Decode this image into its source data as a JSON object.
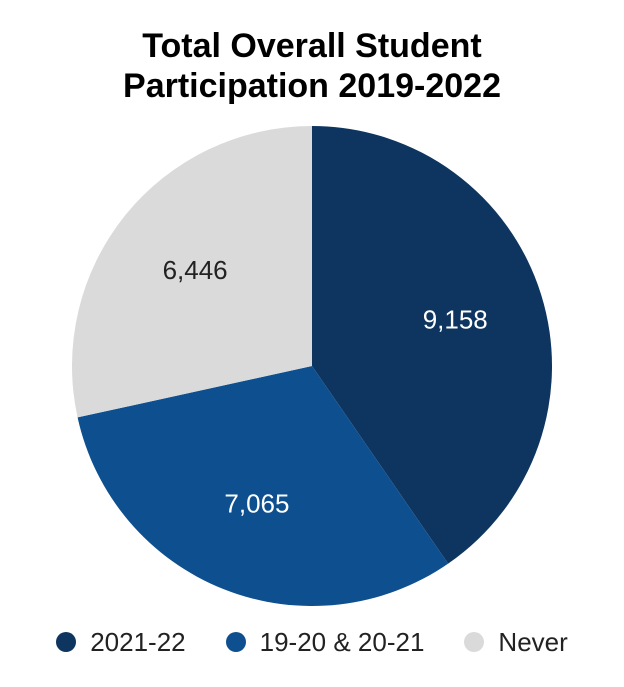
{
  "chart_data": {
    "type": "pie",
    "title_lines": [
      "Total Overall Student",
      "Participation 2019-2022"
    ],
    "slices": [
      {
        "label": "2021-22",
        "value": 9158,
        "value_label": "9,158",
        "color": "#0d355f",
        "label_color": "#ffffff"
      },
      {
        "label": "19-20 & 20-21",
        "value": 7065,
        "value_label": "7,065",
        "color": "#0e508f",
        "label_color": "#ffffff"
      },
      {
        "label": "Never",
        "value": 6446,
        "value_label": "6,446",
        "color": "#dadada",
        "label_color": "#222222"
      }
    ],
    "start_angle": "12 o'clock",
    "direction": "clockwise",
    "legend_position": "bottom"
  }
}
